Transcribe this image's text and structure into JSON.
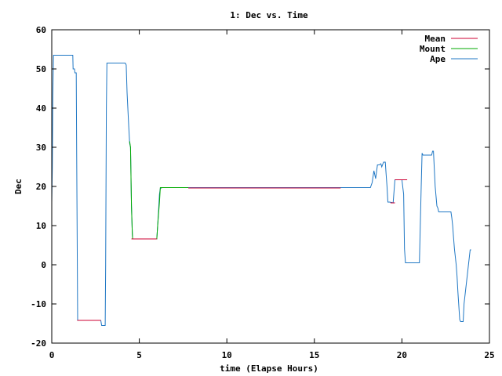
{
  "chart_data": {
    "type": "line",
    "title": "1: Dec vs. Time",
    "xlabel": "time (Elapse Hours)",
    "ylabel": "Dec",
    "xlim": [
      0,
      25
    ],
    "ylim": [
      -20,
      60
    ],
    "xticks": [
      0,
      5,
      10,
      15,
      20,
      25
    ],
    "yticks": [
      -20,
      -10,
      0,
      10,
      20,
      30,
      40,
      50,
      60
    ],
    "grid": false,
    "legend_position": "top-right",
    "series": [
      {
        "name": "Mean",
        "color": "#cc0033",
        "x": [
          1.45,
          2.8,
          null,
          4.55,
          6.0,
          null,
          7.8,
          16.5,
          null,
          19.35,
          19.6,
          null,
          19.6,
          20.3
        ],
        "y": [
          -14.2,
          -14.2,
          null,
          6.6,
          6.6,
          null,
          19.6,
          19.6,
          null,
          15.8,
          15.8,
          null,
          21.7,
          21.7
        ]
      },
      {
        "name": "Mount",
        "color": "#00aa00",
        "x": [
          4.45,
          4.5,
          4.55,
          4.6,
          4.62,
          6.0,
          6.05,
          6.15,
          6.2,
          7.8
        ],
        "y": [
          31.5,
          30,
          15,
          8,
          6.6,
          6.6,
          10,
          16,
          19.7,
          19.7
        ]
      },
      {
        "name": "Ape",
        "color": "#1f77c4",
        "x": [
          0,
          0.03,
          0.06,
          0.1,
          0.15,
          1.2,
          1.22,
          1.3,
          1.32,
          1.4,
          1.42,
          1.48,
          2.8,
          2.85,
          2.9,
          3.05,
          3.08,
          3.12,
          3.15,
          4.2,
          4.25,
          4.3,
          4.4,
          4.45,
          4.5,
          4.55,
          4.6,
          4.62,
          6.0,
          6.05,
          6.1,
          6.15,
          6.2,
          6.3,
          18.2,
          18.3,
          18.4,
          18.5,
          18.6,
          18.7,
          18.8,
          18.85,
          18.95,
          19.05,
          19.1,
          19.15,
          19.2,
          19.3,
          19.5,
          19.6,
          19.65,
          20.0,
          20.1,
          20.15,
          20.2,
          20.3,
          20.35,
          21.0,
          21.1,
          21.15,
          21.2,
          21.6,
          21.7,
          21.75,
          21.8,
          21.9,
          22.0,
          22.05,
          22.1,
          22.8,
          22.85,
          22.9,
          22.95,
          23.0,
          23.1,
          23.15,
          23.2,
          23.3,
          23.35,
          23.4,
          23.5,
          23.55,
          23.9,
          23.95
        ],
        "y": [
          16,
          25,
          43,
          53.5,
          53.5,
          53.5,
          50,
          50,
          49,
          49,
          30,
          -14.2,
          -14.2,
          -15.5,
          -15.5,
          -15.5,
          0,
          40,
          51.5,
          51.5,
          51,
          44,
          35,
          31,
          30,
          15,
          8,
          6.6,
          6.6,
          10,
          14,
          18,
          19.5,
          19.7,
          19.7,
          21,
          24,
          22,
          25.5,
          25.5,
          25.8,
          25,
          26.2,
          26.2,
          23,
          20,
          16,
          16,
          15.8,
          21.7,
          21.7,
          21.7,
          18,
          4,
          0.5,
          0.5,
          0.5,
          0.5,
          20,
          28.5,
          28,
          28,
          28,
          29,
          29,
          20,
          15,
          14.5,
          13.5,
          13.5,
          12,
          10,
          7,
          4,
          0,
          -3,
          -7,
          -14,
          -14.5,
          -14.5,
          -14.5,
          -10,
          3.8,
          3.8
        ]
      }
    ]
  }
}
